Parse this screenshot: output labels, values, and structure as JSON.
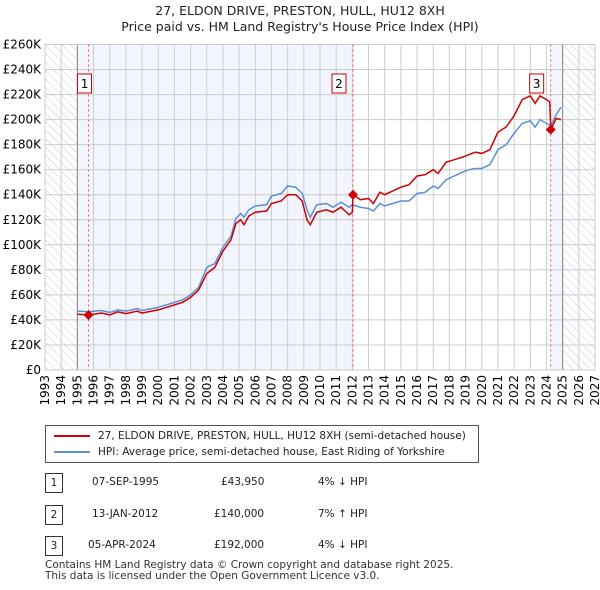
{
  "title": [
    "27, ELDON DRIVE, PRESTON, HULL, HU12 8XH",
    "Price paid vs. HM Land Registry's House Price Index (HPI)"
  ],
  "chart_data": {
    "type": "line",
    "xlim": [
      1993,
      2027
    ],
    "ylim": [
      0,
      260000
    ],
    "yticks": [
      0,
      20000,
      40000,
      60000,
      80000,
      100000,
      120000,
      140000,
      160000,
      180000,
      200000,
      220000,
      240000,
      260000
    ],
    "ytick_labels": [
      "£0",
      "£20K",
      "£40K",
      "£60K",
      "£80K",
      "£100K",
      "£120K",
      "£140K",
      "£160K",
      "£180K",
      "£200K",
      "£220K",
      "£240K",
      "£260K"
    ],
    "xticks": [
      1993,
      1994,
      1995,
      1996,
      1997,
      1998,
      1999,
      2000,
      2001,
      2002,
      2003,
      2004,
      2005,
      2006,
      2007,
      2008,
      2009,
      2010,
      2011,
      2012,
      2013,
      2014,
      2015,
      2016,
      2017,
      2018,
      2019,
      2020,
      2021,
      2022,
      2023,
      2024,
      2025,
      2026,
      2027
    ],
    "data_range": [
      1995,
      2025
    ],
    "grid": true,
    "series": [
      {
        "name": "27, ELDON DRIVE, PRESTON, HULL, HU12 8XH (semi-detached house)",
        "color": "#cc0000",
        "points": [
          [
            1995,
            44500
          ],
          [
            1995.7,
            43950
          ],
          [
            1996.5,
            45500
          ],
          [
            1997,
            44000
          ],
          [
            1997.5,
            46500
          ],
          [
            1998,
            45000
          ],
          [
            1998.7,
            47000
          ],
          [
            1999,
            45500
          ],
          [
            2000,
            48000
          ],
          [
            2001,
            52000
          ],
          [
            2001.5,
            54000
          ],
          [
            2002,
            58000
          ],
          [
            2002.5,
            64000
          ],
          [
            2003,
            77000
          ],
          [
            2003.5,
            82000
          ],
          [
            2004,
            95000
          ],
          [
            2004.5,
            104000
          ],
          [
            2004.8,
            117000
          ],
          [
            2005.1,
            120000
          ],
          [
            2005.3,
            116000
          ],
          [
            2005.6,
            123000
          ],
          [
            2006,
            126000
          ],
          [
            2006.7,
            127000
          ],
          [
            2007,
            133000
          ],
          [
            2007.6,
            135000
          ],
          [
            2008,
            140000
          ],
          [
            2008.5,
            140000
          ],
          [
            2008.9,
            135000
          ],
          [
            2009.2,
            120000
          ],
          [
            2009.4,
            116000
          ],
          [
            2009.8,
            126000
          ],
          [
            2010.4,
            128000
          ],
          [
            2010.8,
            126000
          ],
          [
            2011.3,
            130000
          ],
          [
            2011.8,
            124000
          ],
          [
            2012,
            126000
          ],
          [
            2012.04,
            140000
          ],
          [
            2012.5,
            136000
          ],
          [
            2013,
            137000
          ],
          [
            2013.3,
            133000
          ],
          [
            2013.7,
            142000
          ],
          [
            2014,
            140000
          ],
          [
            2014.5,
            143000
          ],
          [
            2015,
            146000
          ],
          [
            2015.5,
            148000
          ],
          [
            2016,
            155000
          ],
          [
            2016.5,
            156000
          ],
          [
            2017,
            160000
          ],
          [
            2017.3,
            157000
          ],
          [
            2017.8,
            166000
          ],
          [
            2018.3,
            168000
          ],
          [
            2018.8,
            170000
          ],
          [
            2019.2,
            172000
          ],
          [
            2019.6,
            174000
          ],
          [
            2020,
            173000
          ],
          [
            2020.5,
            176000
          ],
          [
            2021,
            190000
          ],
          [
            2021.5,
            194000
          ],
          [
            2022,
            203000
          ],
          [
            2022.5,
            216000
          ],
          [
            2023,
            219000
          ],
          [
            2023.3,
            213000
          ],
          [
            2023.6,
            219000
          ],
          [
            2024,
            216000
          ],
          [
            2024.2,
            214000
          ],
          [
            2024.27,
            192000
          ],
          [
            2024.6,
            201000
          ],
          [
            2024.9,
            200000
          ]
        ]
      },
      {
        "name": "HPI: Average price, semi-detached house, East Riding of Yorkshire",
        "color": "#5b8fd6",
        "points": [
          [
            1995,
            47000
          ],
          [
            1995.7,
            46500
          ],
          [
            1996.5,
            47500
          ],
          [
            1997,
            46000
          ],
          [
            1997.5,
            48000
          ],
          [
            1998,
            47000
          ],
          [
            1998.7,
            49000
          ],
          [
            1999,
            47500
          ],
          [
            2000,
            50000
          ],
          [
            2001,
            54000
          ],
          [
            2001.5,
            56000
          ],
          [
            2002,
            60000
          ],
          [
            2002.5,
            66000
          ],
          [
            2003,
            82000
          ],
          [
            2003.5,
            85000
          ],
          [
            2004,
            98000
          ],
          [
            2004.5,
            107000
          ],
          [
            2004.8,
            121000
          ],
          [
            2005.1,
            125000
          ],
          [
            2005.3,
            122000
          ],
          [
            2005.6,
            128000
          ],
          [
            2006,
            131000
          ],
          [
            2006.7,
            132000
          ],
          [
            2007,
            139000
          ],
          [
            2007.6,
            141000
          ],
          [
            2008,
            147000
          ],
          [
            2008.5,
            146000
          ],
          [
            2008.9,
            141000
          ],
          [
            2009.2,
            128000
          ],
          [
            2009.4,
            122000
          ],
          [
            2009.8,
            132000
          ],
          [
            2010.4,
            133000
          ],
          [
            2010.8,
            130000
          ],
          [
            2011.3,
            134000
          ],
          [
            2011.8,
            130000
          ],
          [
            2012,
            132000
          ],
          [
            2012.5,
            130000
          ],
          [
            2013,
            129000
          ],
          [
            2013.3,
            127000
          ],
          [
            2013.7,
            133000
          ],
          [
            2014,
            131000
          ],
          [
            2014.5,
            133000
          ],
          [
            2015,
            135000
          ],
          [
            2015.5,
            135000
          ],
          [
            2016,
            141000
          ],
          [
            2016.5,
            142000
          ],
          [
            2017,
            147000
          ],
          [
            2017.3,
            145000
          ],
          [
            2017.8,
            152000
          ],
          [
            2018.3,
            155000
          ],
          [
            2018.8,
            158000
          ],
          [
            2019.2,
            160000
          ],
          [
            2019.6,
            161000
          ],
          [
            2020,
            161000
          ],
          [
            2020.5,
            164000
          ],
          [
            2021,
            176000
          ],
          [
            2021.5,
            180000
          ],
          [
            2022,
            189000
          ],
          [
            2022.5,
            197000
          ],
          [
            2023,
            199000
          ],
          [
            2023.3,
            194000
          ],
          [
            2023.6,
            200000
          ],
          [
            2024,
            197000
          ],
          [
            2024.27,
            195000
          ],
          [
            2024.6,
            204000
          ],
          [
            2024.9,
            210000
          ]
        ]
      }
    ],
    "annotations": [
      {
        "label": "1",
        "x": 1995.69,
        "y": 43950
      },
      {
        "label": "2",
        "x": 2012.04,
        "y": 140000
      },
      {
        "label": "3",
        "x": 2024.26,
        "y": 192000
      }
    ],
    "legend_placement": "below"
  },
  "transactions": [
    {
      "num": "1",
      "date": "07-SEP-1995",
      "price": "£43,950",
      "hpi": "4% ↓ HPI"
    },
    {
      "num": "2",
      "date": "13-JAN-2012",
      "price": "£140,000",
      "hpi": "7% ↑ HPI"
    },
    {
      "num": "3",
      "date": "05-APR-2024",
      "price": "£192,000",
      "hpi": "4% ↓ HPI"
    }
  ],
  "footer": [
    "Contains HM Land Registry data © Crown copyright and database right 2025.",
    "This data is licensed under the Open Government Licence v3.0."
  ]
}
